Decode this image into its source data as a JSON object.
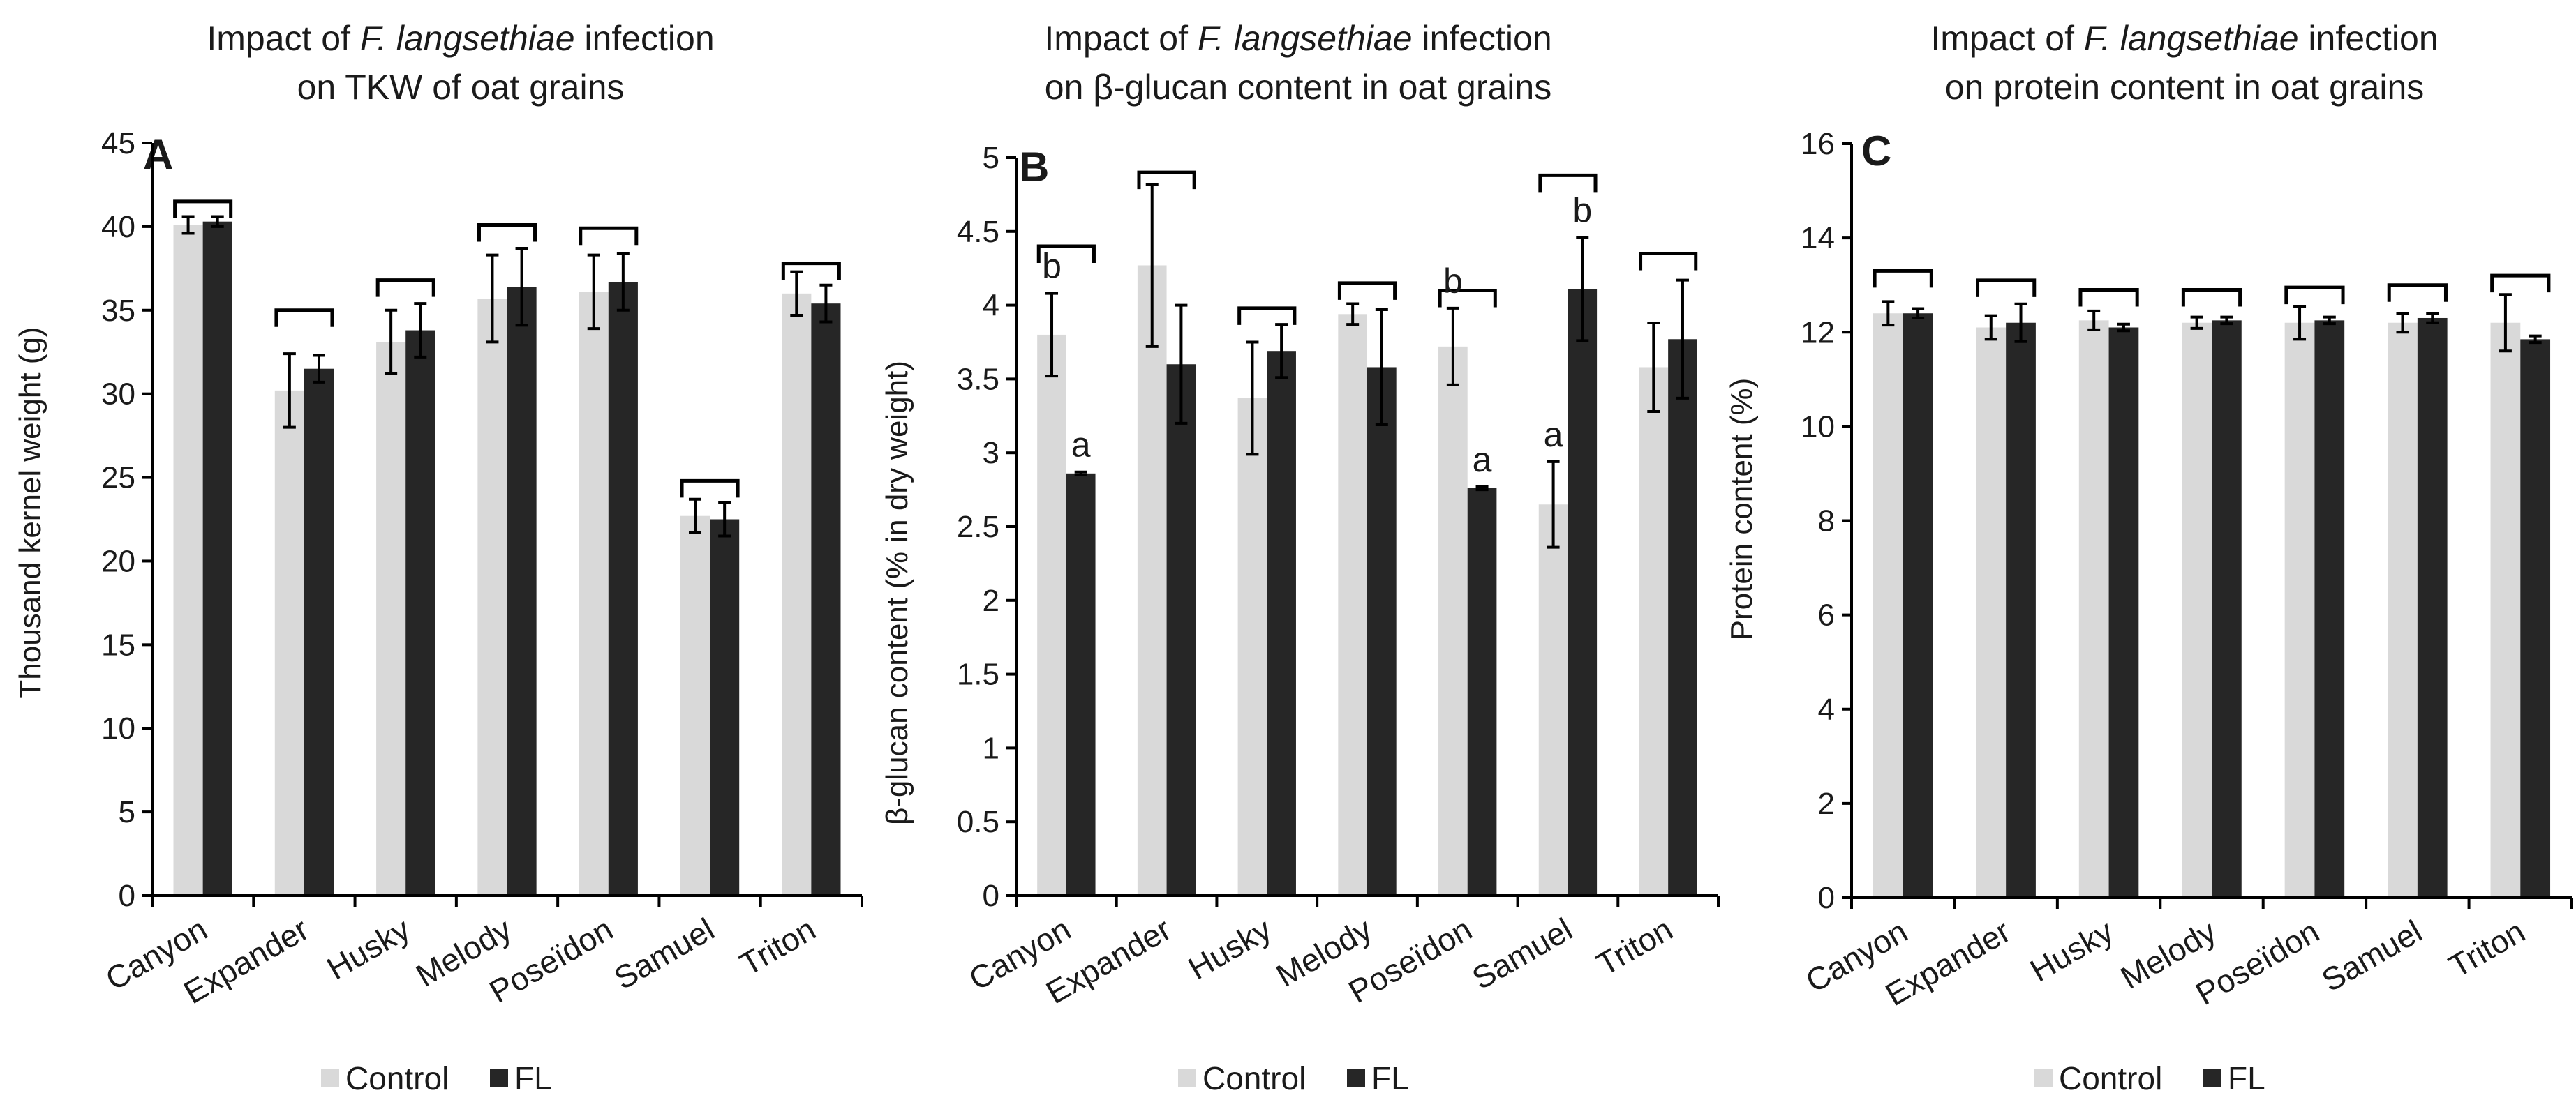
{
  "colors": {
    "control": "#d9d9d9",
    "fl": "#262626"
  },
  "legend": {
    "control": "Control",
    "fl": "FL"
  },
  "chart_data": [
    {
      "id": "A",
      "type": "bar",
      "letter": "A",
      "title": {
        "pre": "Impact of ",
        "italic": "F. langsethiae",
        "post": " infection",
        "line2": "on TKW of oat grains"
      },
      "ylabel": "Thousand kernel weight (g)",
      "ylim": [
        0,
        45
      ],
      "yticks": [
        0,
        5,
        10,
        15,
        20,
        25,
        30,
        35,
        40,
        45
      ],
      "ytick_labels": [
        "0",
        "5",
        "10",
        "15",
        "20",
        "25",
        "30",
        "35",
        "40",
        "45"
      ],
      "categories": [
        "Canyon",
        "Expander",
        "Husky",
        "Melody",
        "Poseïdon",
        "Samuel",
        "Triton"
      ],
      "series": [
        {
          "name": "Control",
          "values": [
            40.1,
            30.2,
            33.1,
            35.7,
            36.1,
            22.7,
            36.0
          ],
          "errors": [
            0.5,
            2.2,
            1.9,
            2.6,
            2.2,
            1.0,
            1.3
          ]
        },
        {
          "name": "FL",
          "values": [
            40.3,
            31.5,
            33.8,
            36.4,
            36.7,
            22.5,
            35.4
          ],
          "errors": [
            0.3,
            0.8,
            1.6,
            2.3,
            1.7,
            1.0,
            1.1
          ]
        }
      ],
      "brackets": [
        41.5,
        35.0,
        36.8,
        40.1,
        39.9,
        24.8,
        37.8
      ],
      "sig_labels": []
    },
    {
      "id": "B",
      "type": "bar",
      "letter": "B",
      "title": {
        "pre": "Impact of ",
        "italic": "F. langsethiae",
        "post": " infection",
        "line2": "on β-glucan content in oat grains"
      },
      "ylabel": "β-glucan content (% in dry weight)",
      "ylim": [
        0,
        5
      ],
      "yticks": [
        0,
        0.5,
        1,
        1.5,
        2,
        2.5,
        3,
        3.5,
        4,
        4.5,
        5
      ],
      "ytick_labels": [
        "0",
        "0.5",
        "1",
        "1.5",
        "2",
        "2.5",
        "3",
        "3.5",
        "4",
        "4.5",
        "5"
      ],
      "categories": [
        "Canyon",
        "Expander",
        "Husky",
        "Melody",
        "Poseïdon",
        "Samuel",
        "Triton"
      ],
      "series": [
        {
          "name": "Control",
          "values": [
            3.8,
            4.27,
            3.37,
            3.94,
            3.72,
            2.65,
            3.58
          ],
          "errors": [
            0.28,
            0.55,
            0.38,
            0.07,
            0.26,
            0.29,
            0.3
          ]
        },
        {
          "name": "FL",
          "values": [
            2.86,
            3.6,
            3.69,
            3.58,
            2.76,
            4.11,
            3.77
          ],
          "errors": [
            0.01,
            0.4,
            0.18,
            0.39,
            0.01,
            0.35,
            0.4
          ]
        }
      ],
      "brackets": [
        4.4,
        4.9,
        3.98,
        4.15,
        4.1,
        4.88,
        4.35
      ],
      "sig_labels": [
        {
          "cat": 0,
          "series": 0,
          "label": "b"
        },
        {
          "cat": 0,
          "series": 1,
          "label": "a"
        },
        {
          "cat": 4,
          "series": 0,
          "label": "b"
        },
        {
          "cat": 4,
          "series": 1,
          "label": "a"
        },
        {
          "cat": 5,
          "series": 0,
          "label": "a"
        },
        {
          "cat": 5,
          "series": 1,
          "label": "b"
        }
      ]
    },
    {
      "id": "C",
      "type": "bar",
      "letter": "C",
      "title": {
        "pre": "Impact of ",
        "italic": "F. langsethiae",
        "post": " infection",
        "line2": "on protein content in oat grains"
      },
      "ylabel": "Protein content (%)",
      "ylim": [
        0,
        16
      ],
      "yticks": [
        0,
        2,
        4,
        6,
        8,
        10,
        12,
        14,
        16
      ],
      "ytick_labels": [
        "0",
        "2",
        "4",
        "6",
        "8",
        "10",
        "12",
        "14",
        "16"
      ],
      "categories": [
        "Canyon",
        "Expander",
        "Husky",
        "Melody",
        "Poseïdon",
        "Samuel",
        "Triton"
      ],
      "series": [
        {
          "name": "Control",
          "values": [
            12.4,
            12.1,
            12.25,
            12.2,
            12.2,
            12.2,
            12.2
          ],
          "errors": [
            0.25,
            0.25,
            0.2,
            0.12,
            0.35,
            0.2,
            0.6
          ]
        },
        {
          "name": "FL",
          "values": [
            12.4,
            12.2,
            12.1,
            12.25,
            12.25,
            12.3,
            11.85
          ],
          "errors": [
            0.1,
            0.4,
            0.07,
            0.07,
            0.07,
            0.1,
            0.07
          ]
        }
      ],
      "brackets": [
        13.3,
        13.1,
        12.9,
        12.9,
        12.95,
        13.0,
        13.2
      ],
      "sig_labels": []
    }
  ]
}
